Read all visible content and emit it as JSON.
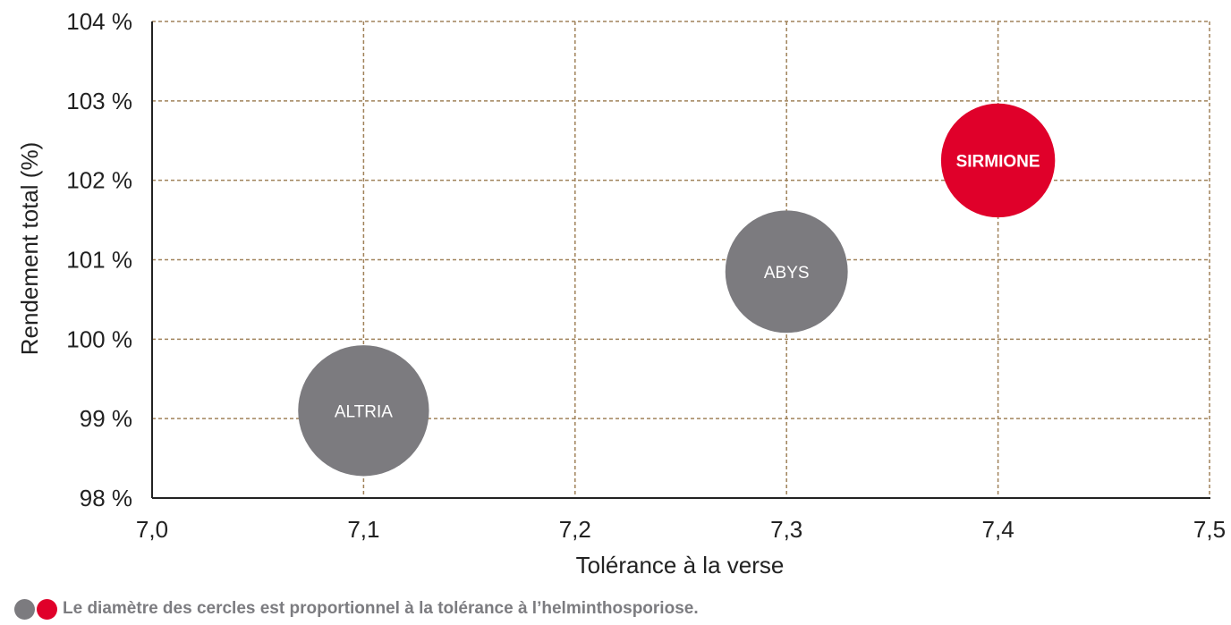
{
  "chart_data": {
    "type": "scatter",
    "subtype": "bubble",
    "title": "",
    "xlabel": "Tolérance à la verse",
    "ylabel": "Rendement total (%)",
    "xlim": [
      7.0,
      7.5
    ],
    "ylim": [
      98,
      104
    ],
    "x_ticks": [
      7.0,
      7.1,
      7.2,
      7.3,
      7.4,
      7.5
    ],
    "x_tick_labels": [
      "7,0",
      "7,1",
      "7,2",
      "7,3",
      "7,4",
      "7,5"
    ],
    "y_ticks": [
      98,
      99,
      100,
      101,
      102,
      103,
      104
    ],
    "y_tick_labels": [
      "98 %",
      "99 %",
      "100 %",
      "101 %",
      "102 %",
      "103 %",
      "104 %"
    ],
    "grid": true,
    "grid_style": "dashed",
    "grid_color": "#a0825a",
    "points": [
      {
        "label": "ALTRIA",
        "x": 7.1,
        "y": 99.1,
        "size": 6.2,
        "color": "#7c7b7f",
        "bold": false
      },
      {
        "label": "ABYS",
        "x": 7.3,
        "y": 100.85,
        "size": 5.8,
        "color": "#7c7b7f",
        "bold": false
      },
      {
        "label": "SIRMIONE",
        "x": 7.4,
        "y": 102.25,
        "size": 5.4,
        "color": "#e0002a",
        "bold": true
      }
    ]
  },
  "footnote": {
    "text": "Le diamètre des cercles est proportionnel à la tolérance à l’helminthosporiose.",
    "dot_colors": [
      "#7c7b7f",
      "#e0002a"
    ]
  }
}
